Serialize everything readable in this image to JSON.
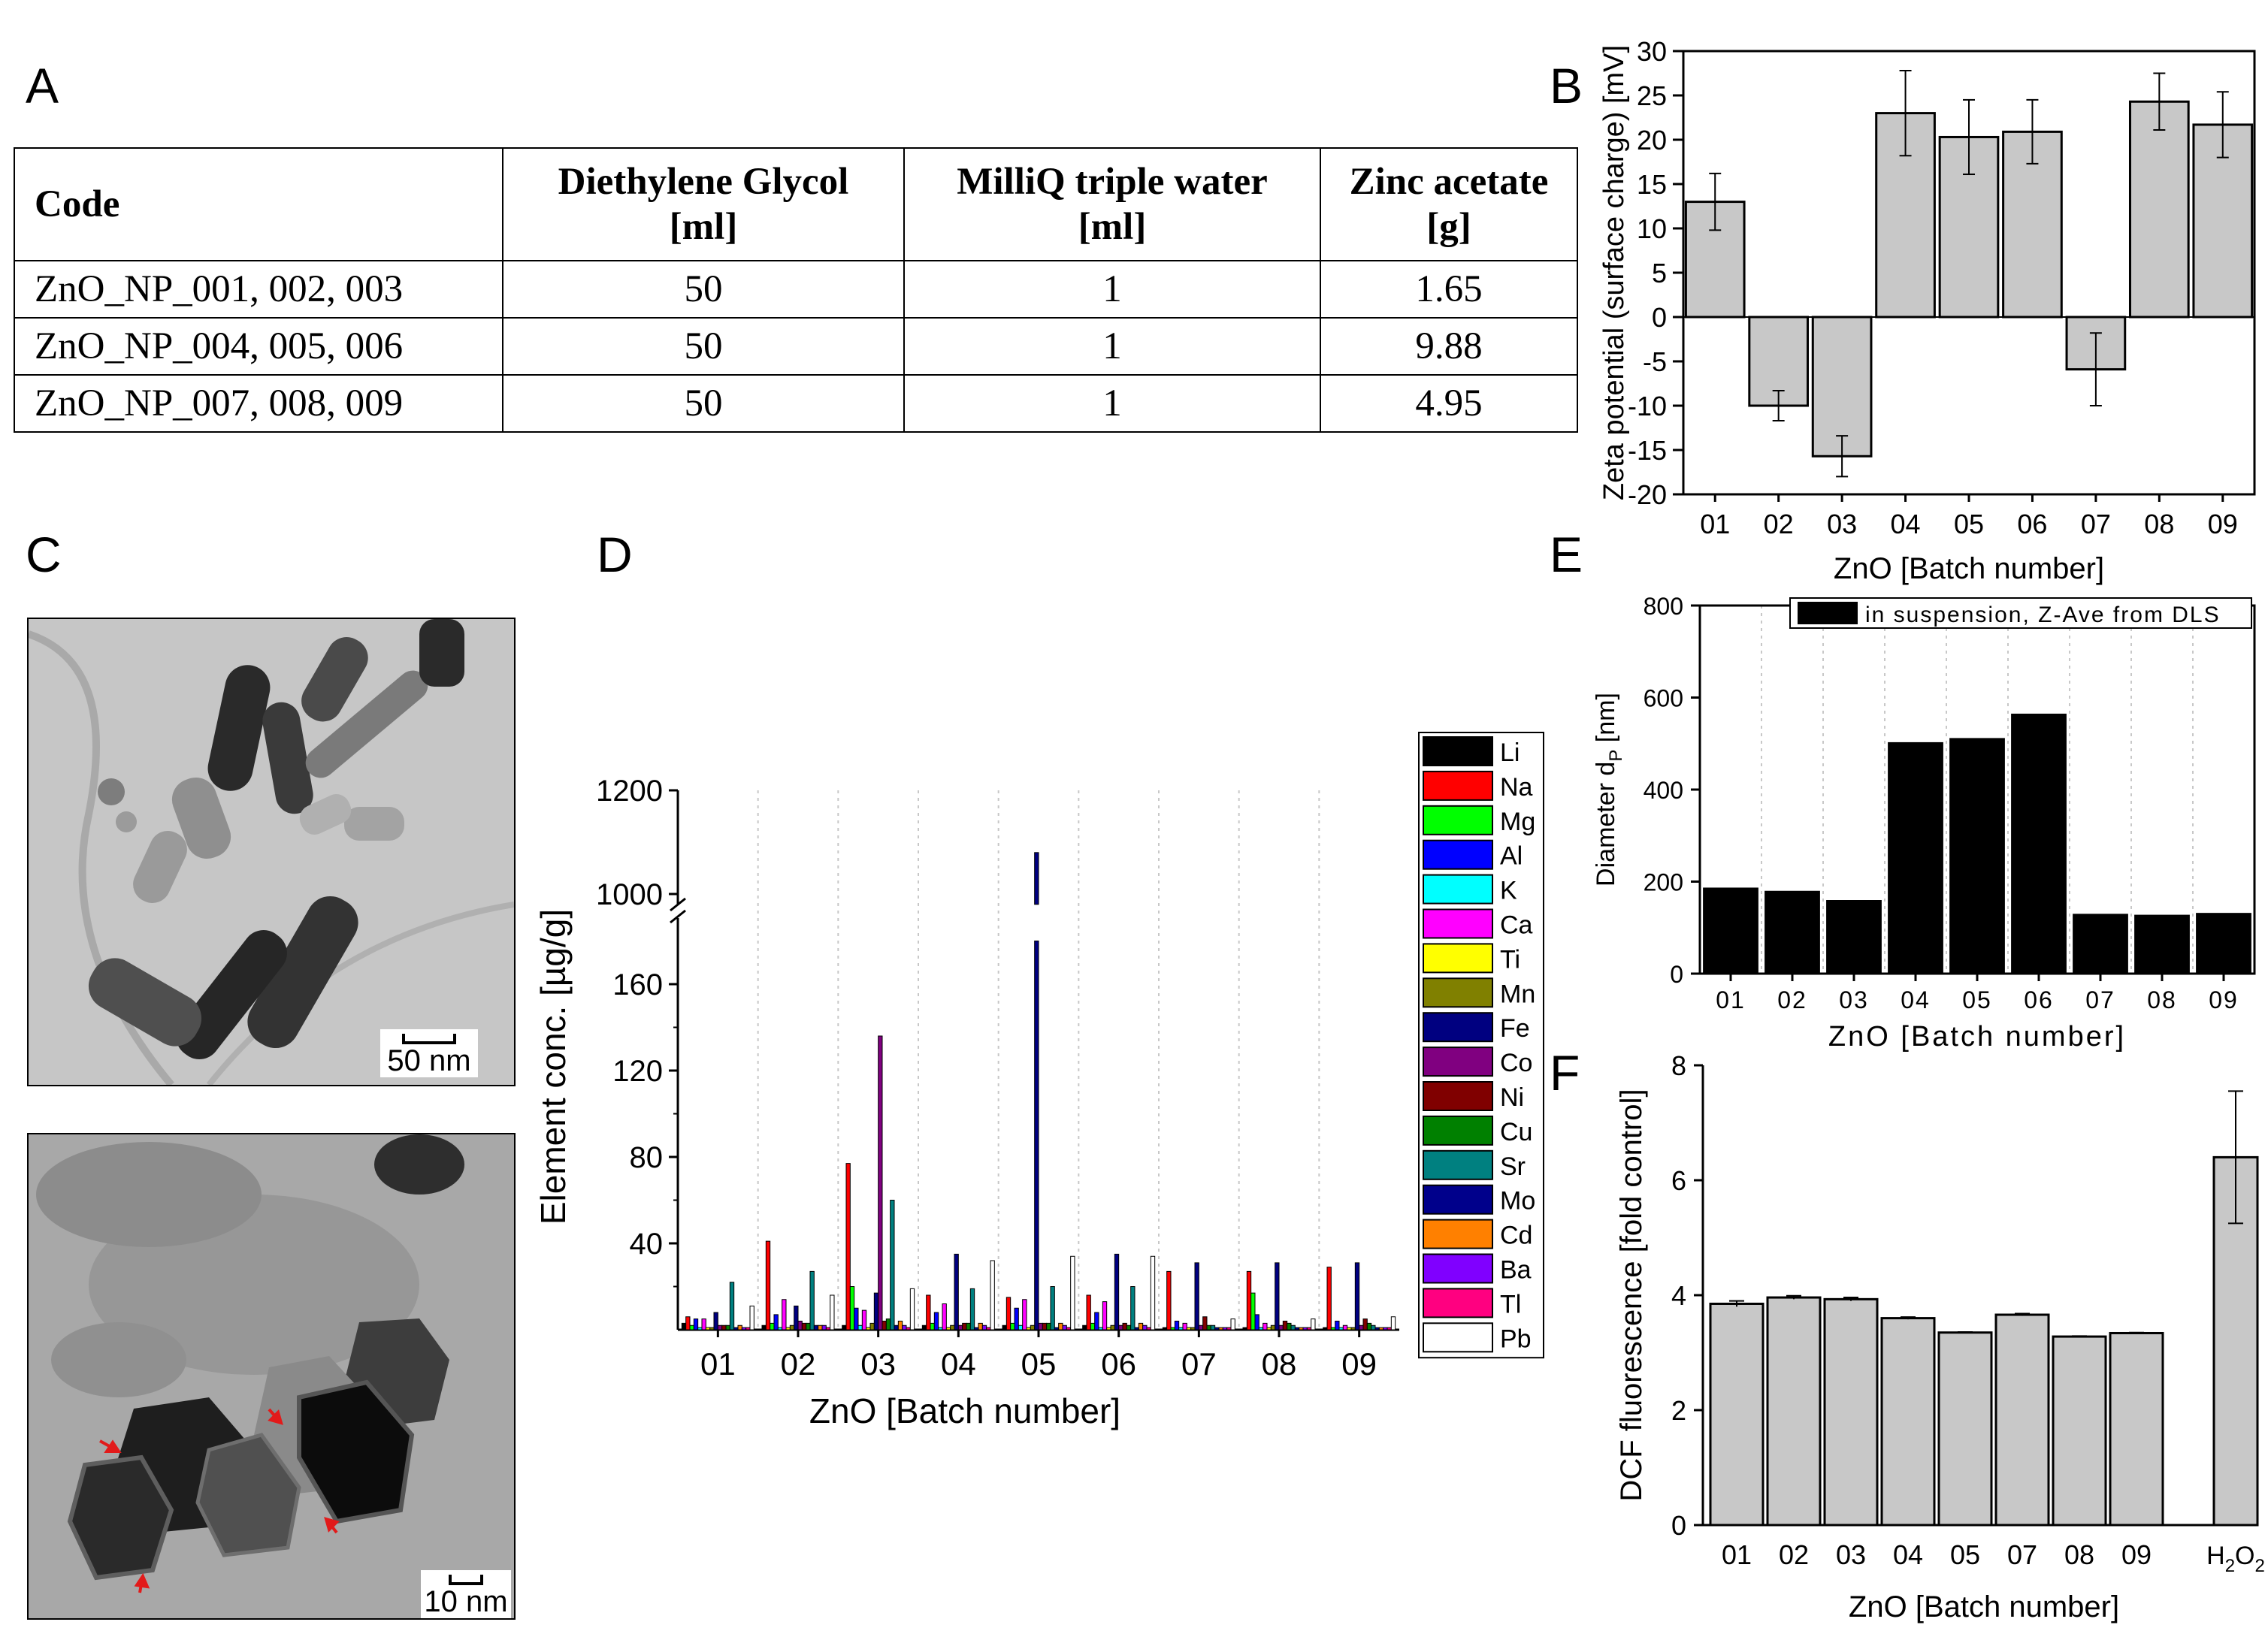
{
  "panels": {
    "a": "A",
    "b": "B",
    "c": "C",
    "d": "D",
    "e": "E",
    "f": "F"
  },
  "table": {
    "headers": [
      {
        "line1": "Code",
        "line2": ""
      },
      {
        "line1": "Diethylene Glycol",
        "line2": "[ml]"
      },
      {
        "line1": "MilliQ triple water",
        "line2": "[ml]"
      },
      {
        "line1": "Zinc acetate",
        "line2": "[g]"
      }
    ],
    "rows": [
      [
        "ZnO_NP_001, 002, 003",
        "50",
        "1",
        "1.65"
      ],
      [
        "ZnO_NP_004, 005, 006",
        "50",
        "1",
        "9.88"
      ],
      [
        "ZnO_NP_007, 008, 009",
        "50",
        "1",
        "4.95"
      ]
    ]
  },
  "tem": {
    "scale_top": "50 nm",
    "scale_bottom": "10 nm"
  },
  "chart_data": [
    {
      "id": "B",
      "type": "bar",
      "categories": [
        "01",
        "02",
        "03",
        "04",
        "05",
        "06",
        "07",
        "08",
        "09"
      ],
      "values": [
        13,
        -10,
        -15.7,
        23,
        20.3,
        20.9,
        -5.9,
        24.3,
        21.7
      ],
      "errors": [
        3.2,
        1.7,
        2.3,
        4.8,
        4.2,
        3.6,
        4.1,
        3.2,
        3.7
      ],
      "ylim": [
        -20,
        30
      ],
      "yticks": [
        -20,
        -15,
        -10,
        -5,
        0,
        5,
        10,
        15,
        20,
        25,
        30
      ],
      "xlabel": "ZnO [Batch number]",
      "ylabel": "Zeta potential (surface charge) [mV]",
      "color": "#c8c8c8"
    },
    {
      "id": "E",
      "type": "bar",
      "categories": [
        "01",
        "02",
        "03",
        "04",
        "05",
        "06",
        "07",
        "08",
        "09"
      ],
      "values": [
        187,
        180,
        160,
        503,
        512,
        565,
        130,
        128,
        132
      ],
      "ylim": [
        0,
        800
      ],
      "yticks": [
        0,
        200,
        400,
        600,
        800
      ],
      "xlabel": "ZnO [Batch number]",
      "ylabel_main": "Diameter d",
      "ylabel_sub": "P",
      "ylabel_unit": " [nm]",
      "legend": "in suspension, Z-Ave from DLS",
      "grid": "vertical dotted",
      "color": "#000000"
    },
    {
      "id": "F",
      "type": "bar",
      "categories": [
        "01",
        "02",
        "03",
        "04",
        "05",
        "07",
        "08",
        "09"
      ],
      "values": [
        3.85,
        3.96,
        3.93,
        3.6,
        3.35,
        3.66,
        3.28,
        3.34
      ],
      "errors": [
        0.05,
        0.03,
        0.03,
        0.02,
        0.01,
        0.02,
        0.01,
        0.01
      ],
      "control": {
        "label_main": "H",
        "label_sub1": "2",
        "label_mid": "O",
        "label_sub2": "2",
        "value": 6.4,
        "error": 1.15
      },
      "ylim": [
        0,
        8
      ],
      "yticks": [
        0,
        2,
        4,
        6,
        8
      ],
      "xlabel": "ZnO [Batch number]",
      "ylabel": "DCF fluorescence [fold control]",
      "color": "#c8c8c8"
    },
    {
      "id": "D",
      "type": "bar",
      "categories": [
        "01",
        "02",
        "03",
        "04",
        "05",
        "06",
        "07",
        "08",
        "09"
      ],
      "xlabel": "ZnO [Batch number]",
      "ylabel": "Element conc. [µg/g]",
      "yticks": [
        40,
        80,
        120,
        160,
        1000,
        1200
      ],
      "axis_break": [
        180,
        980
      ],
      "series": [
        {
          "name": "Li",
          "color": "#000000",
          "values": [
            3,
            2,
            2,
            2,
            2,
            2,
            1,
            1,
            1
          ]
        },
        {
          "name": "Na",
          "color": "#ff0000",
          "values": [
            6,
            41,
            77,
            16,
            15,
            16,
            27,
            27,
            29
          ]
        },
        {
          "name": "Mg",
          "color": "#00ff00",
          "values": [
            2,
            3,
            20,
            3,
            3,
            3,
            1,
            17,
            1
          ]
        },
        {
          "name": "Al",
          "color": "#0000ff",
          "values": [
            5,
            7,
            10,
            8,
            10,
            8,
            4,
            7,
            4
          ]
        },
        {
          "name": "K",
          "color": "#00ffff",
          "values": [
            1,
            1,
            2,
            1,
            2,
            1,
            1,
            1,
            1
          ]
        },
        {
          "name": "Ca",
          "color": "#ff00ff",
          "values": [
            5,
            14,
            9,
            12,
            14,
            13,
            3,
            3,
            2
          ]
        },
        {
          "name": "Ti",
          "color": "#ffff00",
          "values": [
            1,
            1,
            1,
            1,
            1,
            1,
            1,
            1,
            1
          ]
        },
        {
          "name": "Mn",
          "color": "#808000",
          "values": [
            1,
            2,
            3,
            2,
            2,
            2,
            1,
            2,
            1
          ]
        },
        {
          "name": "Fe",
          "color": "#000080",
          "values": [
            8,
            11,
            17,
            35,
            1080,
            35,
            31,
            31,
            31
          ]
        },
        {
          "name": "Co",
          "color": "#800080",
          "values": [
            2,
            4,
            136,
            2,
            3,
            2,
            2,
            2,
            2
          ]
        },
        {
          "name": "Ni",
          "color": "#800000",
          "values": [
            2,
            3,
            4,
            3,
            3,
            3,
            6,
            4,
            5
          ]
        },
        {
          "name": "Cu",
          "color": "#008000",
          "values": [
            2,
            3,
            5,
            3,
            3,
            2,
            2,
            3,
            3
          ]
        },
        {
          "name": "Sr",
          "color": "#008080",
          "values": [
            22,
            27,
            60,
            19,
            20,
            20,
            2,
            2,
            2
          ]
        },
        {
          "name": "Mo",
          "color": "#00008b",
          "values": [
            1,
            2,
            2,
            1,
            1,
            1,
            1,
            1,
            1
          ]
        },
        {
          "name": "Cd",
          "color": "#ff8000",
          "values": [
            2,
            2,
            4,
            3,
            3,
            3,
            1,
            1,
            1
          ]
        },
        {
          "name": "Ba",
          "color": "#8000ff",
          "values": [
            1,
            2,
            2,
            2,
            2,
            2,
            1,
            1,
            1
          ]
        },
        {
          "name": "Tl",
          "color": "#ff0080",
          "values": [
            1,
            1,
            1,
            1,
            1,
            1,
            1,
            1,
            1
          ]
        },
        {
          "name": "Pb",
          "color": "#ffffff",
          "values": [
            11,
            16,
            19,
            32,
            34,
            34,
            5,
            5,
            6
          ]
        }
      ]
    }
  ]
}
